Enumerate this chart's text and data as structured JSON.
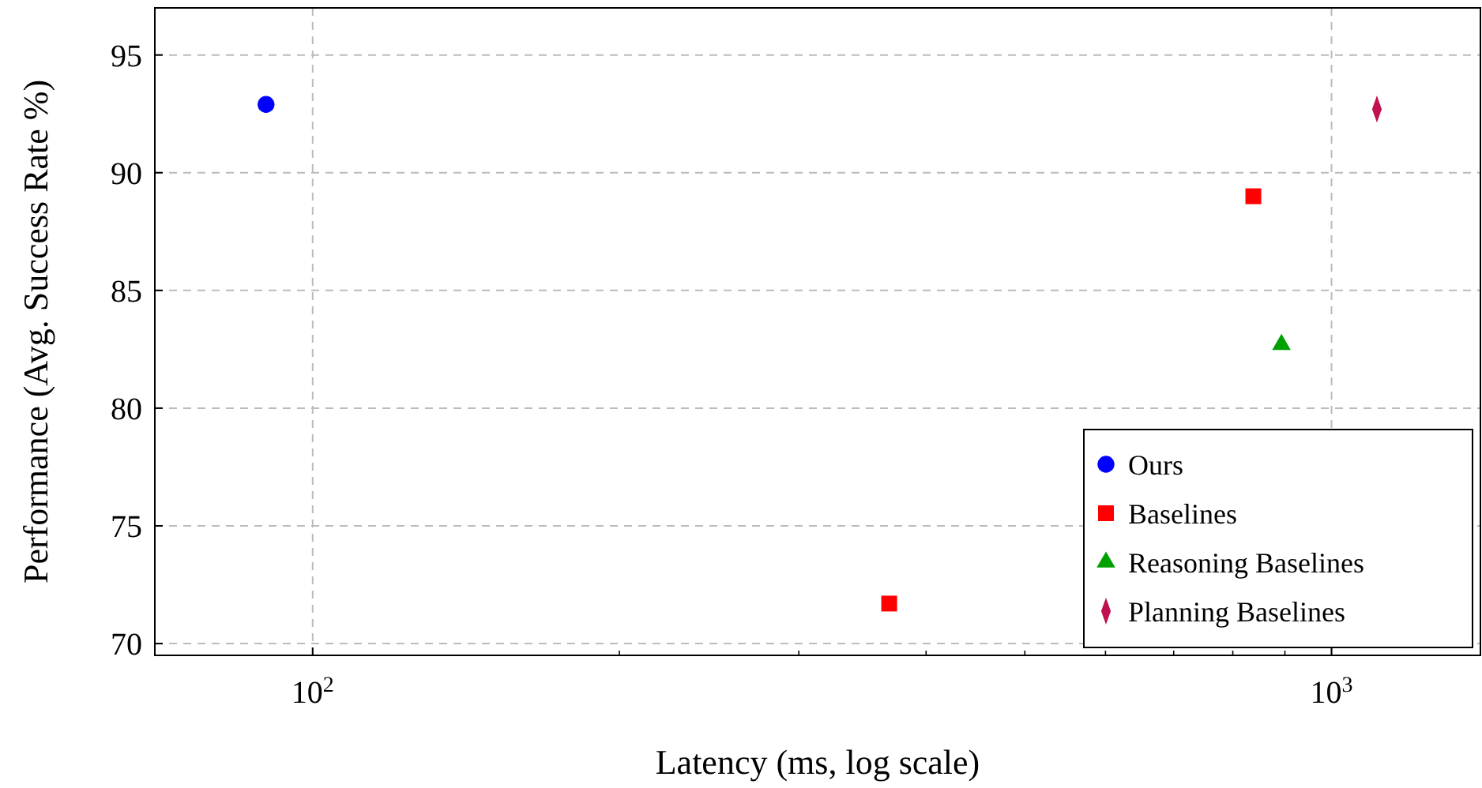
{
  "chart_data": {
    "type": "scatter",
    "xlabel": "Latency (ms, log scale)",
    "ylabel": "Performance (Avg. Success Rate %)",
    "log": "x",
    "grid": true,
    "legend": "bottom right",
    "xlim": [
      70,
      1400
    ],
    "ylim": [
      69.5,
      97
    ],
    "xticks": [
      {
        "value": 100,
        "label": "10$^{2}$"
      },
      {
        "value": 200,
        "label": null
      },
      {
        "value": 300,
        "label": null
      },
      {
        "value": 400,
        "label": null
      },
      {
        "value": 500,
        "label": null
      },
      {
        "value": 600,
        "label": null
      },
      {
        "value": 700,
        "label": null
      },
      {
        "value": 800,
        "label": null
      },
      {
        "value": 900,
        "label": null
      },
      {
        "value": 1000,
        "label": "10$^{3}$"
      }
    ],
    "yticks": [
      70,
      75,
      80,
      85,
      90,
      95
    ],
    "series": [
      {
        "name": "Ours",
        "color": "#0000ff",
        "marker": "circle",
        "x": [
          90
        ],
        "values": [
          92.9
        ]
      },
      {
        "name": "Baselines",
        "color": "#ff0000",
        "marker": "square",
        "x": [
          368,
          838
        ],
        "values": [
          71.7,
          89.0
        ]
      },
      {
        "name": "Reasoning Baselines",
        "color": "#00a000",
        "marker": "triangle",
        "x": [
          893
        ],
        "values": [
          82.7
        ]
      },
      {
        "name": "Planning Baselines",
        "color": "#c0104f",
        "marker": "diamond",
        "x": [
          1108
        ],
        "values": [
          92.7
        ]
      }
    ]
  }
}
